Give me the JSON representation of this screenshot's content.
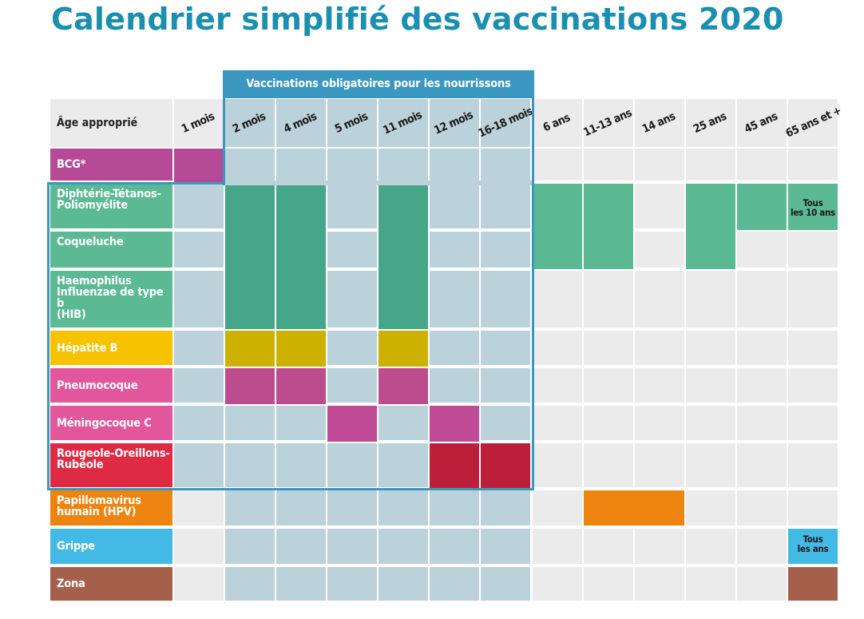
{
  "title": "Calendrier simplifié des vaccinations 2020",
  "banner": "Vaccinations obligatoires pour les nourrissons",
  "header_label": "Âge approprié",
  "ages": [
    "1 mois",
    "2 mois",
    "4 mois",
    "5 mois",
    "11 mois",
    "12 mois",
    "16-18 mois",
    "6 ans",
    "11-13 ans",
    "14 ans",
    "25 ans",
    "45 ans",
    "65 ans et +"
  ],
  "rows": [
    {
      "label": "BCG*",
      "color": "#b64a97"
    },
    {
      "label": "Diphtérie-Tétanos-\nPoliomyélite",
      "color": "#5bb993"
    },
    {
      "label": "Coqueluche",
      "color": "#5bb993"
    },
    {
      "label": "Haemophilus\nInfluenzae de type b\n(HIB)",
      "color": "#5bb993"
    },
    {
      "label": "Hépatite B",
      "color": "#f7c200"
    },
    {
      "label": "Pneumocoque",
      "color": "#e2569b"
    },
    {
      "label": "Méningocoque C",
      "color": "#e2569b"
    },
    {
      "label": "Rougeole-Oreillons-\nRubéole",
      "color": "#df2a44"
    },
    {
      "label": "Papillomavirus\nhumain (HPV)",
      "color": "#ee8410"
    },
    {
      "label": "Grippe",
      "color": "#43b9e5"
    },
    {
      "label": "Zona",
      "color": "#a5604c"
    }
  ],
  "notes": {
    "dtp": "Tous\nles 10 ans",
    "grippe": "Tous\nles ans"
  },
  "side_credit": "",
  "colors": {
    "title": "#1b8fb0",
    "frame": "#3a97c0",
    "empty": "#ebebeb",
    "empty_oblig": "#bcd2da",
    "green_dark": "#46a68a",
    "green": "#5bb993",
    "yellow_dark": "#ccb100",
    "magenta_dark": "#bb4d8f",
    "magenta": "#c24b98",
    "red_dark": "#bb1f3a",
    "orange": "#ee8410",
    "brown": "#a5604c",
    "bcg_purple": "#b64a97"
  }
}
